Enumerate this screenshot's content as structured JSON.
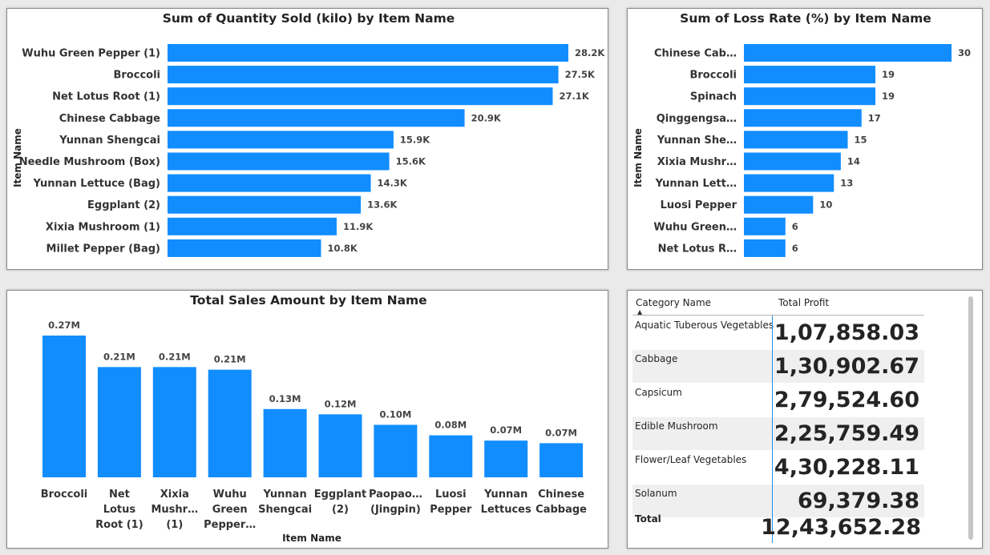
{
  "chart_data": [
    {
      "type": "bar",
      "orientation": "horizontal",
      "title": "Sum of Quantity Sold (kilo) by Item Name",
      "ylabel": "Item Name",
      "xlabel": "",
      "categories": [
        "Wuhu Green Pepper (1)",
        "Broccoli",
        "Net Lotus Root (1)",
        "Chinese Cabbage",
        "Yunnan Shengcai",
        "Needle Mushroom (Box)",
        "Yunnan Lettuce (Bag)",
        "Eggplant (2)",
        "Xixia Mushroom (1)",
        "Millet Pepper (Bag)"
      ],
      "values": [
        28200,
        27500,
        27100,
        20900,
        15900,
        15600,
        14300,
        13600,
        11900,
        10800
      ],
      "value_labels": [
        "28.2K",
        "27.5K",
        "27.1K",
        "20.9K",
        "15.9K",
        "15.6K",
        "14.3K",
        "13.6K",
        "11.9K",
        "10.8K"
      ],
      "xlim": [
        0,
        28200
      ],
      "color": "#118DFF"
    },
    {
      "type": "bar",
      "orientation": "horizontal",
      "title": "Sum of Loss Rate (%) by Item Name",
      "ylabel": "Item Name",
      "xlabel": "",
      "categories": [
        "Chinese Cab…",
        "Broccoli",
        "Spinach",
        "Qinggengsa…",
        "Yunnan She…",
        "Xixia Mushr…",
        "Yunnan Lett…",
        "Luosi Pepper",
        "Wuhu Green…",
        "Net Lotus R…"
      ],
      "values": [
        30,
        19,
        19,
        17,
        15,
        14,
        13,
        10,
        6,
        6
      ],
      "value_labels": [
        "30",
        "19",
        "19",
        "17",
        "15",
        "14",
        "13",
        "10",
        "6",
        "6"
      ],
      "xlim": [
        0,
        30
      ],
      "color": "#118DFF"
    },
    {
      "type": "bar",
      "orientation": "vertical",
      "title": "Total Sales Amount by Item Name",
      "xlabel": "Item Name",
      "ylabel": "",
      "categories": [
        "Broccoli",
        "Net Lotus Root (1)",
        "Xixia Mushr… (1)",
        "Wuhu Green Pepper…",
        "Yunnan Shengcai",
        "Eggplant (2)",
        "Paopao… (Jingpin)",
        "Luosi Pepper",
        "Yunnan Lettuces",
        "Chinese Cabbage"
      ],
      "category_lines": [
        [
          "Broccoli"
        ],
        [
          "Net",
          "Lotus",
          "Root (1)"
        ],
        [
          "Xixia",
          "Mushr…",
          "(1)"
        ],
        [
          "Wuhu",
          "Green",
          "Pepper…"
        ],
        [
          "Yunnan",
          "Shengcai"
        ],
        [
          "Eggplant",
          "(2)"
        ],
        [
          "Paopao…",
          "(Jingpin)"
        ],
        [
          "Luosi",
          "Pepper"
        ],
        [
          "Yunnan",
          "Lettuces"
        ],
        [
          "Chinese",
          "Cabbage"
        ]
      ],
      "values": [
        0.27,
        0.21,
        0.21,
        0.205,
        0.13,
        0.12,
        0.1,
        0.08,
        0.07,
        0.065
      ],
      "value_labels": [
        "0.27M",
        "0.21M",
        "0.21M",
        "0.21M",
        "0.13M",
        "0.12M",
        "0.10M",
        "0.08M",
        "0.07M",
        "0.07M"
      ],
      "value_unit": "M",
      "ylim": [
        0,
        0.27
      ],
      "color": "#118DFF"
    },
    {
      "type": "table",
      "columns": [
        "Category Name",
        "Total Profit"
      ],
      "rows": [
        [
          "Aquatic Tuberous Vegetables",
          "1,07,858.03"
        ],
        [
          "Cabbage",
          "1,30,902.67"
        ],
        [
          "Capsicum",
          "2,79,524.60"
        ],
        [
          "Edible Mushroom",
          "2,25,759.49"
        ],
        [
          "Flower/Leaf Vegetables",
          "4,30,228.11"
        ],
        [
          "Solanum",
          "69,379.38"
        ]
      ],
      "total_label": "Total",
      "total_value": "12,43,652.28",
      "sort_icon": "sort-ascending-icon",
      "sort_glyph": "▲",
      "accent": "#118DFF"
    }
  ]
}
